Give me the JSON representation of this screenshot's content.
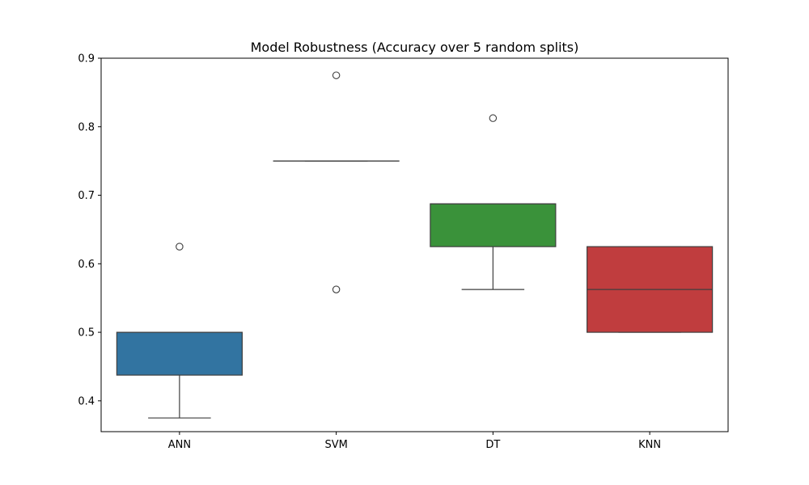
{
  "chart_data": {
    "type": "box",
    "title": "Model Robustness (Accuracy over 5 random splits)",
    "xlabel": "",
    "ylabel": "",
    "ylim": [
      0.355,
      0.9
    ],
    "yticks": [
      0.4,
      0.5,
      0.6,
      0.7,
      0.8,
      0.9
    ],
    "ytick_labels": [
      "0.4",
      "0.5",
      "0.6",
      "0.7",
      "0.8",
      "0.9"
    ],
    "grid": false,
    "legend": "none",
    "categories": [
      "ANN",
      "SVM",
      "DT",
      "KNN"
    ],
    "boxes": [
      {
        "category": "ANN",
        "color": "#3274a1",
        "whislo": 0.375,
        "q1": 0.4375,
        "med": 0.5,
        "q3": 0.5,
        "whishi": 0.5,
        "fliers": [
          0.625
        ]
      },
      {
        "category": "SVM",
        "color": "#e1812c",
        "whislo": 0.75,
        "q1": 0.75,
        "med": 0.75,
        "q3": 0.75,
        "whishi": 0.75,
        "fliers": [
          0.875,
          0.5625
        ]
      },
      {
        "category": "DT",
        "color": "#3a923a",
        "whislo": 0.5625,
        "q1": 0.625,
        "med": 0.6875,
        "q3": 0.6875,
        "whishi": 0.6875,
        "fliers": [
          0.8125
        ]
      },
      {
        "category": "KNN",
        "color": "#c03d3e",
        "whislo": 0.5,
        "q1": 0.5,
        "med": 0.5625,
        "q3": 0.625,
        "whishi": 0.625,
        "fliers": []
      }
    ]
  }
}
